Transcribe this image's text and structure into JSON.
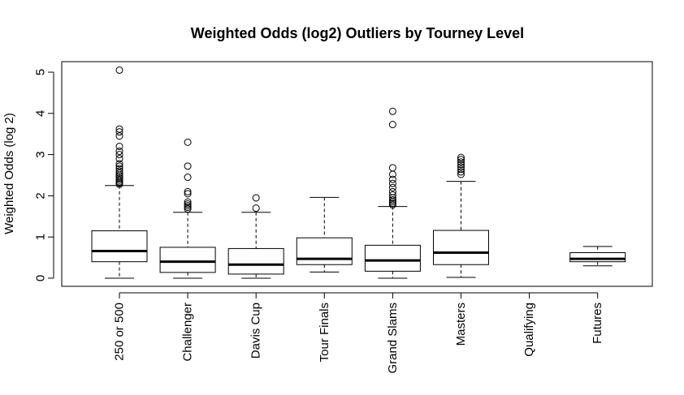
{
  "chart_data": {
    "type": "box",
    "title": "Weighted Odds (log2) Outliers by Tourney Level",
    "xlabel": "",
    "ylabel": "Weighted Odds (log 2)",
    "ylim": [
      -0.2,
      5.25
    ],
    "yticks": [
      0,
      1,
      2,
      3,
      4,
      5
    ],
    "categories": [
      "250 or 500",
      "Challenger",
      "Davis Cup",
      "Tour Finals",
      "Grand Slams",
      "Masters",
      "Qualifying",
      "Futures"
    ],
    "boxes": [
      {
        "category": "250 or 500",
        "whisker_low": 0.0,
        "q1": 0.4,
        "median": 0.66,
        "q3": 1.15,
        "whisker_high": 2.25,
        "outliers": [
          2.28,
          2.31,
          2.34,
          2.38,
          2.42,
          2.46,
          2.5,
          2.55,
          2.6,
          2.66,
          2.72,
          2.78,
          2.9,
          3.0,
          3.08,
          3.2,
          3.45,
          3.55,
          3.62,
          5.05
        ]
      },
      {
        "category": "Challenger",
        "whisker_low": 0.0,
        "q1": 0.14,
        "median": 0.4,
        "q3": 0.75,
        "whisker_high": 1.6,
        "outliers": [
          1.68,
          1.72,
          1.76,
          1.8,
          1.85,
          2.05,
          2.1,
          2.45,
          2.72,
          3.3
        ]
      },
      {
        "category": "Davis Cup",
        "whisker_low": 0.0,
        "q1": 0.1,
        "median": 0.33,
        "q3": 0.72,
        "whisker_high": 1.6,
        "outliers": [
          1.7,
          1.95
        ]
      },
      {
        "category": "Tour Finals",
        "whisker_low": 0.15,
        "q1": 0.33,
        "median": 0.47,
        "q3": 0.98,
        "whisker_high": 1.96,
        "outliers": []
      },
      {
        "category": "Grand Slams",
        "whisker_low": 0.0,
        "q1": 0.17,
        "median": 0.43,
        "q3": 0.8,
        "whisker_high": 1.74,
        "outliers": [
          1.78,
          1.82,
          1.86,
          1.9,
          1.95,
          2.02,
          2.1,
          2.2,
          2.3,
          2.4,
          2.52,
          2.68,
          3.73,
          4.05
        ]
      },
      {
        "category": "Masters",
        "whisker_low": 0.02,
        "q1": 0.33,
        "median": 0.62,
        "q3": 1.16,
        "whisker_high": 2.35,
        "outliers": [
          2.52,
          2.58,
          2.64,
          2.7,
          2.76,
          2.82,
          2.88,
          2.93
        ]
      },
      {
        "category": "Qualifying",
        "whisker_low": null,
        "q1": null,
        "median": null,
        "q3": null,
        "whisker_high": null,
        "outliers": []
      },
      {
        "category": "Futures",
        "whisker_low": 0.3,
        "q1": 0.4,
        "median": 0.47,
        "q3": 0.62,
        "whisker_high": 0.77,
        "outliers": []
      }
    ],
    "grid": false
  }
}
